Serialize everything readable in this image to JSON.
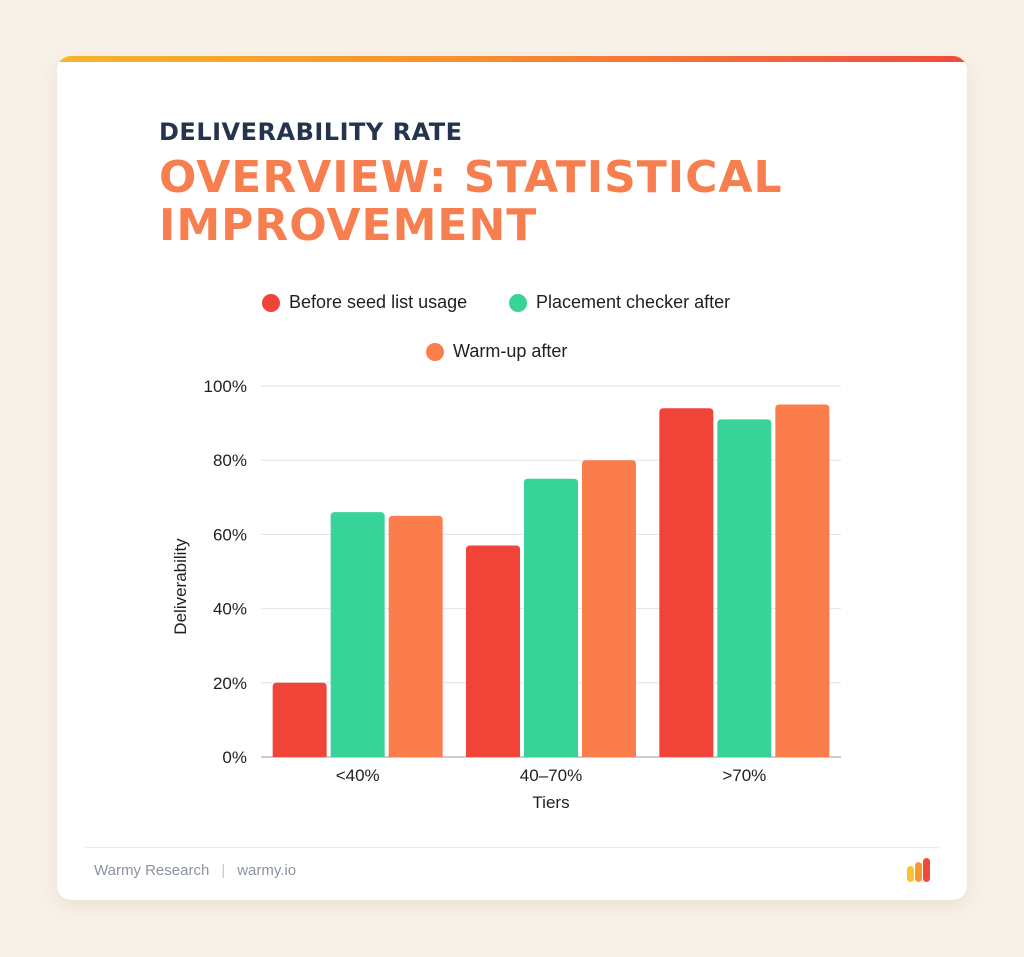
{
  "header": {
    "title_small": "DELIVERABILITY RATE",
    "title_big": "OVERVIEW: STATISTICAL\nIMPROVEMENT"
  },
  "colors": {
    "accent_orange": "#f77e4f",
    "navy": "#24344d",
    "red": "#f04438",
    "green": "#37d399",
    "orange": "#fb7d4b"
  },
  "chart_data": {
    "type": "bar",
    "categories": [
      "<40%",
      "40–70%",
      ">70%"
    ],
    "series": [
      {
        "name": "Before seed list usage",
        "color": "#f04438",
        "values": [
          20,
          57,
          94
        ]
      },
      {
        "name": "Placement checker after",
        "color": "#37d399",
        "values": [
          66,
          75,
          91
        ]
      },
      {
        "name": "Warm-up after",
        "color": "#fb7d4b",
        "values": [
          65,
          80,
          95
        ]
      }
    ],
    "xlabel": "Tiers",
    "ylabel": "Deliverability",
    "ylim": [
      0,
      100
    ],
    "yticks": [
      "0%",
      "20%",
      "40%",
      "60%",
      "80%",
      "100%"
    ],
    "grid": true,
    "legend_position": "top"
  },
  "footer": {
    "source": "Warmy Research",
    "separator": "|",
    "site": "warmy.io"
  },
  "logo": {
    "icon": "warmy-bars-logo",
    "colors": [
      "#f7c531",
      "#f79a2e",
      "#ef4b3c"
    ]
  }
}
